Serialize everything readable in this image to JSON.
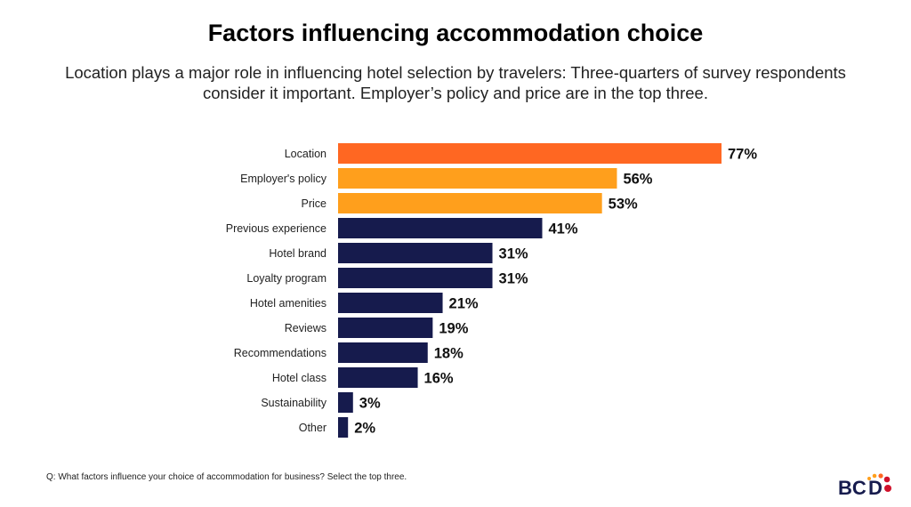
{
  "title": "Factors influencing accommodation choice",
  "subtitle": "Location plays a major role in influencing hotel selection by travelers: Three-quarters of survey respondents consider it important. Employer’s policy and price are in the top three.",
  "footnote": "Q: What factors influence your choice of accommodation for business? Select the top three.",
  "logo_text": "BCD",
  "chart_data": {
    "type": "bar",
    "orientation": "horizontal",
    "categories": [
      "Location",
      "Employer's policy",
      "Price",
      "Previous experience",
      "Hotel brand",
      "Loyalty program",
      "Hotel amenities",
      "Reviews",
      "Recommendations",
      "Hotel class",
      "Sustainability",
      "Other"
    ],
    "values": [
      77,
      56,
      53,
      41,
      31,
      31,
      21,
      19,
      18,
      16,
      3,
      2
    ],
    "data_labels": [
      "77%",
      "56%",
      "53%",
      "41%",
      "31%",
      "31%",
      "21%",
      "19%",
      "18%",
      "16%",
      "3%",
      "2%"
    ],
    "colors": [
      "#ff6722",
      "#ff9f1c",
      "#ff9f1c",
      "#161b4d",
      "#161b4d",
      "#161b4d",
      "#161b4d",
      "#161b4d",
      "#161b4d",
      "#161b4d",
      "#161b4d",
      "#161b4d"
    ],
    "xlim": [
      0,
      100
    ],
    "grid": false,
    "unit": "%"
  }
}
